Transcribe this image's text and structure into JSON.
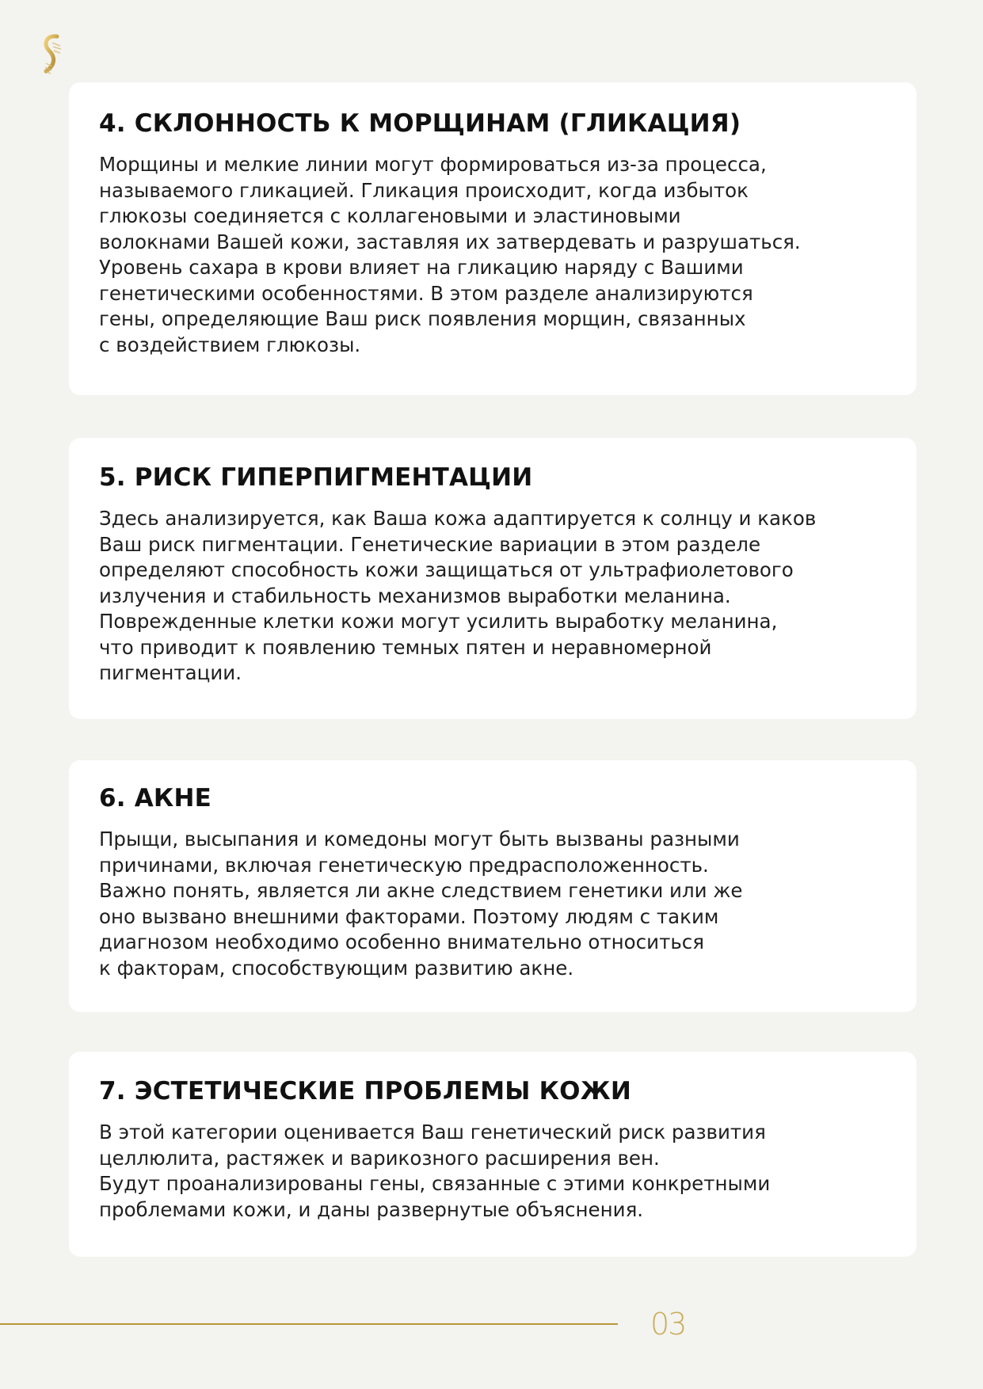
{
  "brand": {
    "logo_icon": "gold-dna-helix-icon",
    "accent_color": "#b8973a"
  },
  "sections": [
    {
      "title": "4. СКЛОННОСТЬ К МОРЩИНАМ (ГЛИКАЦИЯ)",
      "lines": [
        "Морщины и мелкие линии могут формироваться из-за процесса,",
        "называемого гликацией. Гликация происходит, когда избыток",
        "глюкозы соединяется с коллагеновыми и эластиновыми",
        "волокнами Вашей кожи, заставляя их затвердевать и разрушаться.",
        "Уровень сахара в крови влияет на гликацию наряду с Вашими",
        "генетическими особенностями. В этом разделе анализируются",
        "гены, определяющие Ваш риск появления морщин, связанных",
        "с воздействием глюкозы."
      ]
    },
    {
      "title": "5. РИСК ГИПЕРПИГМЕНТАЦИИ",
      "lines": [
        "Здесь анализируется, как Ваша кожа адаптируется к солнцу и каков",
        "Ваш риск пигментации. Генетические вариации в этом разделе",
        "определяют способность кожи защищаться от ультрафиолетового",
        "излучения и стабильность механизмов выработки меланина.",
        "Поврежденные клетки кожи могут усилить выработку меланина,",
        "что приводит к появлению темных пятен и неравномерной",
        "пигментации."
      ]
    },
    {
      "title": "6. АКНЕ",
      "lines": [
        "Прыщи, высыпания и комедоны могут быть вызваны разными",
        "причинами, включая генетическую предрасположенность.",
        "Важно понять, является ли акне следствием генетики или же",
        "оно вызвано внешними факторами. Поэтому людям с таким",
        "диагнозом необходимо особенно внимательно относиться",
        "к факторам, способствующим развитию акне."
      ]
    },
    {
      "title": "7. ЭСТЕТИЧЕСКИЕ ПРОБЛЕМЫ КОЖИ",
      "lines": [
        "В этой категории оценивается Ваш генетический риск развития",
        "целлюлита, растяжек и варикозного расширения вен.",
        "Будут проанализированы гены, связанные с этими конкретными",
        "проблемами кожи, и даны развернутые объяснения."
      ]
    }
  ],
  "footer": {
    "page_number": "03"
  }
}
